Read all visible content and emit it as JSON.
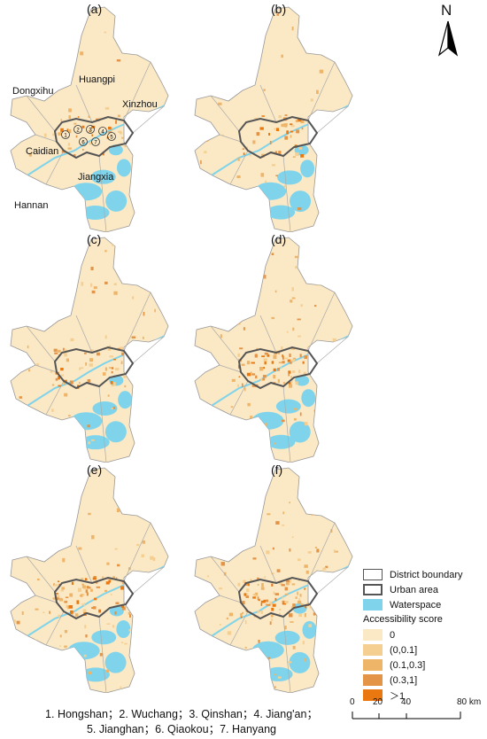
{
  "panels": [
    {
      "label": "(a)",
      "show_places": true
    },
    {
      "label": "(b)",
      "show_places": false
    },
    {
      "label": "(c)",
      "show_places": false
    },
    {
      "label": "(d)",
      "show_places": false
    },
    {
      "label": "(e)",
      "show_places": false
    },
    {
      "label": "(f)",
      "show_places": false
    }
  ],
  "place_names": {
    "huangpi": "Huangpi",
    "dongxihu": "Dongxihu",
    "xinzhou": "Xinzhou",
    "caidian": "Caidian",
    "jiangxia": "Jiangxia",
    "hannan": "Hannan"
  },
  "district_numbers": [
    "1",
    "2",
    "3",
    "4",
    "5",
    "6",
    "7"
  ],
  "north_arrow": "N",
  "legend": {
    "district_boundary": "District boundary",
    "urban_area": "Urban area",
    "waterspace": "Waterspace",
    "score_title": "Accessibility score",
    "classes": [
      {
        "label": "0",
        "color": "#fbe8c4"
      },
      {
        "label": "(0,0.1]",
        "color": "#f5cf91"
      },
      {
        "label": "(0.1,0.3]",
        "color": "#eeb468"
      },
      {
        "label": "(0.3,1]",
        "color": "#e49447"
      },
      {
        "label": "＞1",
        "color": "#e8780f"
      }
    ],
    "water_color": "#7fd4ec"
  },
  "footnote": {
    "line1": "1. Hongshan；2. Wuchang；3. Qinshan；4. Jiang'an；",
    "line2": "5. Jianghan；6. Qiaokou；7. Hanyang"
  },
  "scale_bar": {
    "ticks": [
      "0",
      "20",
      "40",
      "80 km"
    ]
  }
}
